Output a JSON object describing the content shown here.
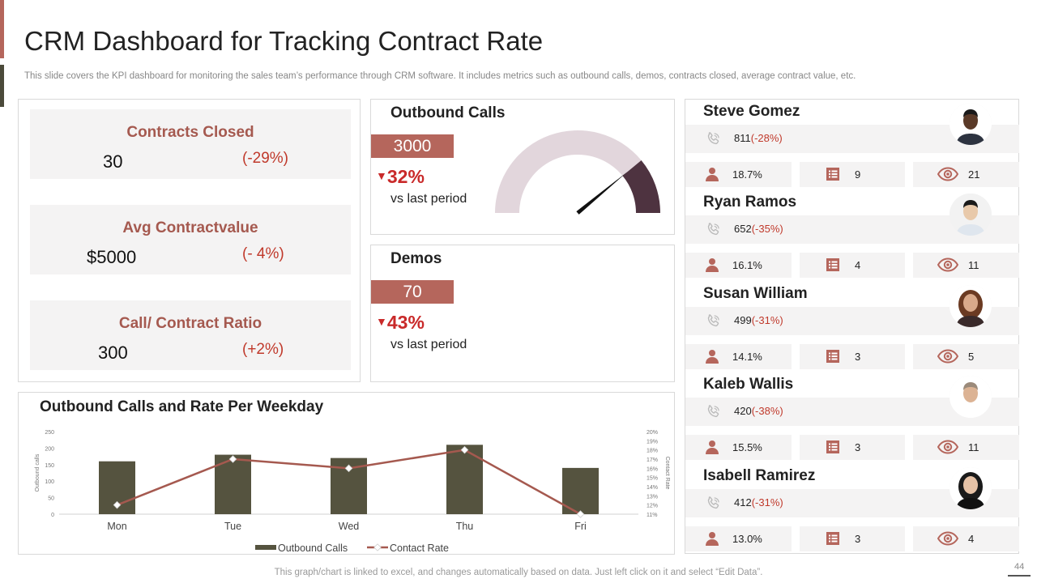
{
  "header": {
    "title": "CRM Dashboard for Tracking Contract Rate",
    "subtitle": "This slide covers the KPI dashboard for monitoring the sales team’s performance through CRM software. It includes metrics such as outbound calls, demos, contracts closed, average contract value, etc."
  },
  "kpis": [
    {
      "label": "Contracts Closed",
      "value": "30",
      "change": "(-29%)"
    },
    {
      "label": "Avg Contractvalue",
      "value": "$5000",
      "change": "(- 4%)"
    },
    {
      "label": "Call/ Contract Ratio",
      "value": "300",
      "change": "(+2%)"
    }
  ],
  "outbound": {
    "title": "Outbound Calls",
    "value": "3000",
    "pct": "32%",
    "sub": "vs last period",
    "gauge_level": 0.78
  },
  "demos": {
    "title": "Demos",
    "value": "70",
    "pct": "43%",
    "sub": "vs last period"
  },
  "colors": {
    "accent": "#b5665c",
    "bar": "#55533f",
    "line": "#a5594f",
    "gauge_bg": "#e2d6dc",
    "gauge_fill": "#4e3340",
    "negative": "#c0392b"
  },
  "chart_data": {
    "type": "bar",
    "title": "Outbound Calls and Rate Per Weekday",
    "categories": [
      "Mon",
      "Tue",
      "Wed",
      "Thu",
      "Fri"
    ],
    "series": [
      {
        "name": "Outbound Calls",
        "type": "bar",
        "axis": "left",
        "values": [
          160,
          180,
          170,
          210,
          140
        ]
      },
      {
        "name": "Contact Rate",
        "type": "line",
        "axis": "right",
        "values": [
          12,
          17,
          16,
          18,
          11
        ]
      }
    ],
    "ylabel": "Outbound calls",
    "y2label": "Contact Rate",
    "ylim": [
      0,
      250
    ],
    "yticks": [
      "0",
      "50",
      "100",
      "150",
      "200",
      "250"
    ],
    "y2lim": [
      11,
      20
    ],
    "y2ticks": [
      "11%",
      "12%",
      "13%",
      "14%",
      "15%",
      "16%",
      "17%",
      "18%",
      "19%",
      "20%"
    ],
    "legend": "bottom-center"
  },
  "people": [
    {
      "name": "Steve Gomez",
      "calls": "811",
      "calls_change": "(-28%)",
      "rate": "18.7%",
      "tasks": "9",
      "views": "21"
    },
    {
      "name": "Ryan Ramos",
      "calls": "652",
      "calls_change": "(-35%)",
      "rate": "16.1%",
      "tasks": "4",
      "views": "11"
    },
    {
      "name": "Susan William",
      "calls": "499",
      "calls_change": "(-31%)",
      "rate": "14.1%",
      "tasks": "3",
      "views": "5"
    },
    {
      "name": "Kaleb Wallis",
      "calls": "420",
      "calls_change": "(-38%)",
      "rate": "15.5%",
      "tasks": "3",
      "views": "11"
    },
    {
      "name": "Isabell Ramirez",
      "calls": "412",
      "calls_change": "(-31%)",
      "rate": "13.0%",
      "tasks": "3",
      "views": "4"
    }
  ],
  "footer": {
    "note": "This graph/chart is linked to excel, and changes automatically based on data. Just left click on it and select “Edit Data”.",
    "page": "44"
  }
}
